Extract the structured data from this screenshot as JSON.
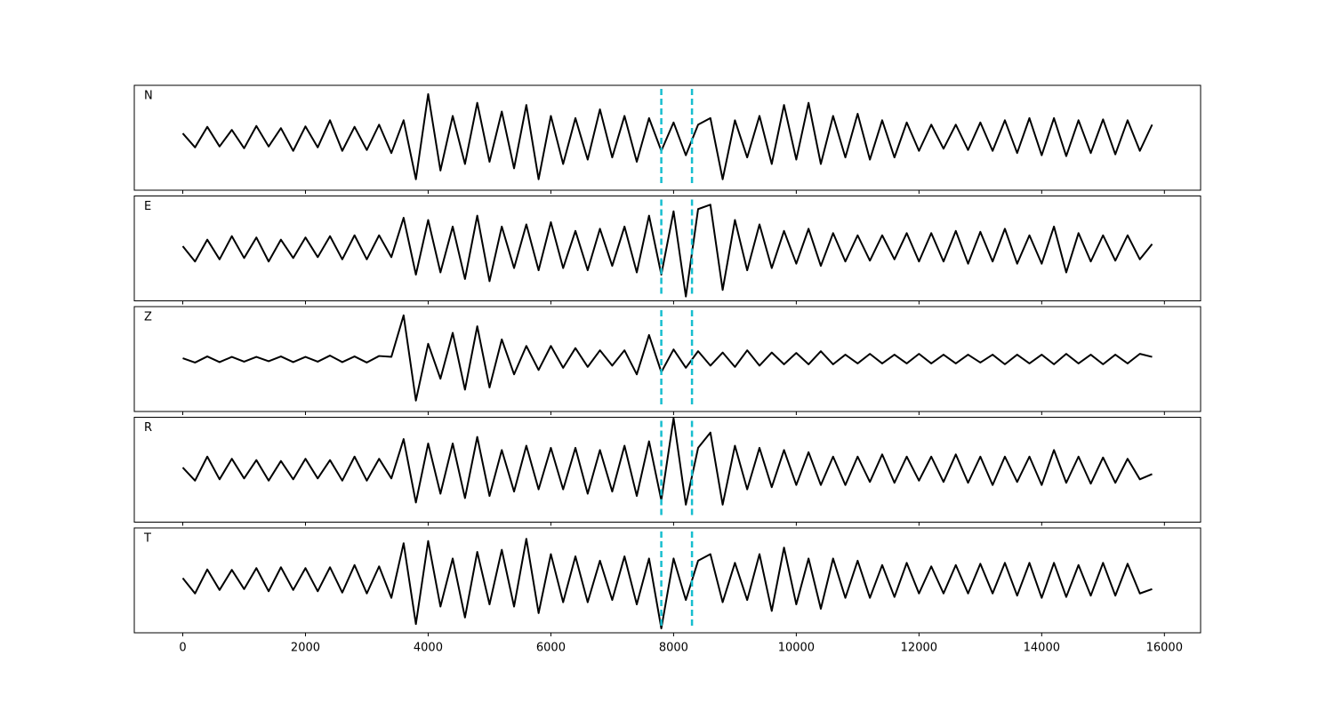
{
  "chart_data": {
    "type": "line",
    "layout": "stacked-panels",
    "x": [
      0,
      200,
      400,
      600,
      800,
      1000,
      1200,
      1400,
      1600,
      1800,
      2000,
      2200,
      2400,
      2600,
      2800,
      3000,
      3200,
      3400,
      3600,
      3800,
      4000,
      4200,
      4400,
      4600,
      4800,
      5000,
      5200,
      5400,
      5600,
      5800,
      6000,
      6200,
      6400,
      6600,
      6800,
      7000,
      7200,
      7400,
      7600,
      7800,
      8000,
      8200,
      8400,
      8600,
      8800,
      9000,
      9200,
      9400,
      9600,
      9800,
      10000,
      10200,
      10400,
      10600,
      10800,
      11000,
      11200,
      11400,
      11600,
      11800,
      12000,
      12200,
      12400,
      12600,
      12800,
      13000,
      13200,
      13400,
      13600,
      13800,
      14000,
      14200,
      14400,
      14600,
      14800,
      15000,
      15200,
      15400,
      15600,
      15800
    ],
    "xlim": [
      -790,
      16590
    ],
    "xticks": [
      0,
      2000,
      4000,
      6000,
      8000,
      10000,
      12000,
      14000,
      16000
    ],
    "ylim": [
      -1.2,
      1.2
    ],
    "series": [
      {
        "name": "N",
        "color": "#000000",
        "values": [
          0.1,
          -0.22,
          0.25,
          -0.2,
          0.18,
          -0.24,
          0.27,
          -0.2,
          0.22,
          -0.3,
          0.26,
          -0.22,
          0.4,
          -0.3,
          0.25,
          -0.28,
          0.3,
          -0.35,
          0.4,
          -0.95,
          1.0,
          -0.75,
          0.5,
          -0.6,
          0.8,
          -0.55,
          0.6,
          -0.7,
          0.75,
          -0.95,
          0.5,
          -0.6,
          0.45,
          -0.5,
          0.65,
          -0.45,
          0.5,
          -0.55,
          0.45,
          -0.3,
          0.35,
          -0.4,
          0.3,
          0.45,
          -0.95,
          0.4,
          -0.45,
          0.5,
          -0.6,
          0.75,
          -0.5,
          0.8,
          -0.6,
          0.5,
          -0.45,
          0.55,
          -0.5,
          0.4,
          -0.45,
          0.35,
          -0.3,
          0.3,
          -0.25,
          0.3,
          -0.28,
          0.35,
          -0.3,
          0.4,
          -0.35,
          0.45,
          -0.4,
          0.45,
          -0.42,
          0.4,
          -0.35,
          0.42,
          -0.38,
          0.4,
          -0.3,
          0.3
        ]
      },
      {
        "name": "E",
        "color": "#000000",
        "values": [
          0.05,
          -0.3,
          0.2,
          -0.25,
          0.28,
          -0.22,
          0.25,
          -0.3,
          0.2,
          -0.22,
          0.25,
          -0.2,
          0.28,
          -0.25,
          0.3,
          -0.25,
          0.3,
          -0.2,
          0.7,
          -0.6,
          0.65,
          -0.55,
          0.5,
          -0.7,
          0.75,
          -0.75,
          0.5,
          -0.45,
          0.55,
          -0.5,
          0.6,
          -0.45,
          0.4,
          -0.5,
          0.45,
          -0.4,
          0.5,
          -0.55,
          0.75,
          -0.6,
          0.85,
          -1.1,
          0.9,
          1.0,
          -0.95,
          0.65,
          -0.5,
          0.55,
          -0.45,
          0.4,
          -0.35,
          0.45,
          -0.4,
          0.35,
          -0.3,
          0.3,
          -0.28,
          0.3,
          -0.25,
          0.35,
          -0.3,
          0.35,
          -0.3,
          0.4,
          -0.35,
          0.38,
          -0.3,
          0.45,
          -0.35,
          0.3,
          -0.35,
          0.5,
          -0.55,
          0.35,
          -0.3,
          0.3,
          -0.28,
          0.3,
          -0.25,
          0.1
        ]
      },
      {
        "name": "Z",
        "color": "#000000",
        "values": [
          0.02,
          -0.08,
          0.06,
          -0.07,
          0.05,
          -0.06,
          0.05,
          -0.05,
          0.06,
          -0.07,
          0.05,
          -0.06,
          0.08,
          -0.07,
          0.06,
          -0.08,
          0.07,
          0.05,
          1.0,
          -0.95,
          0.35,
          -0.45,
          0.6,
          -0.7,
          0.75,
          -0.65,
          0.45,
          -0.35,
          0.3,
          -0.25,
          0.3,
          -0.2,
          0.25,
          -0.18,
          0.2,
          -0.15,
          0.2,
          -0.35,
          0.55,
          -0.3,
          0.22,
          -0.2,
          0.18,
          -0.15,
          0.15,
          -0.18,
          0.2,
          -0.15,
          0.15,
          -0.12,
          0.14,
          -0.12,
          0.18,
          -0.12,
          0.1,
          -0.1,
          0.12,
          -0.1,
          0.1,
          -0.1,
          0.12,
          -0.1,
          0.1,
          -0.1,
          0.1,
          -0.08,
          0.1,
          -0.12,
          0.1,
          -0.1,
          0.1,
          -0.12,
          0.12,
          -0.1,
          0.1,
          -0.12,
          0.1,
          -0.1,
          0.12,
          0.05
        ]
      },
      {
        "name": "R",
        "color": "#000000",
        "values": [
          0.05,
          -0.25,
          0.3,
          -0.22,
          0.25,
          -0.2,
          0.22,
          -0.25,
          0.2,
          -0.22,
          0.25,
          -0.2,
          0.22,
          -0.25,
          0.3,
          -0.25,
          0.25,
          -0.2,
          0.7,
          -0.75,
          0.6,
          -0.55,
          0.6,
          -0.65,
          0.75,
          -0.6,
          0.45,
          -0.5,
          0.55,
          -0.45,
          0.5,
          -0.45,
          0.5,
          -0.55,
          0.45,
          -0.5,
          0.55,
          -0.6,
          0.65,
          -0.7,
          1.18,
          -0.8,
          0.5,
          0.85,
          -0.8,
          0.55,
          -0.45,
          0.5,
          -0.4,
          0.45,
          -0.35,
          0.4,
          -0.35,
          0.3,
          -0.35,
          0.3,
          -0.28,
          0.35,
          -0.3,
          0.3,
          -0.25,
          0.3,
          -0.28,
          0.35,
          -0.3,
          0.3,
          -0.35,
          0.3,
          -0.28,
          0.3,
          -0.35,
          0.45,
          -0.3,
          0.3,
          -0.32,
          0.28,
          -0.3,
          0.25,
          -0.22,
          -0.1
        ]
      },
      {
        "name": "T",
        "color": "#000000",
        "values": [
          0.05,
          -0.3,
          0.25,
          -0.22,
          0.24,
          -0.2,
          0.28,
          -0.25,
          0.3,
          -0.22,
          0.28,
          -0.25,
          0.3,
          -0.28,
          0.35,
          -0.3,
          0.32,
          -0.4,
          0.85,
          -1.0,
          0.9,
          -0.6,
          0.5,
          -0.85,
          0.65,
          -0.55,
          0.7,
          -0.6,
          0.95,
          -0.75,
          0.6,
          -0.5,
          0.55,
          -0.5,
          0.45,
          -0.45,
          0.55,
          -0.55,
          0.5,
          -1.1,
          0.5,
          -0.45,
          0.45,
          0.6,
          -0.5,
          0.4,
          -0.45,
          0.6,
          -0.7,
          0.75,
          -0.55,
          0.5,
          -0.65,
          0.5,
          -0.4,
          0.45,
          -0.4,
          0.35,
          -0.38,
          0.4,
          -0.3,
          0.32,
          -0.3,
          0.35,
          -0.3,
          0.38,
          -0.3,
          0.4,
          -0.35,
          0.4,
          -0.4,
          0.4,
          -0.38,
          0.35,
          -0.35,
          0.4,
          -0.35,
          0.38,
          -0.3,
          -0.2
        ]
      }
    ],
    "vlines": {
      "values": [
        7800,
        8300
      ],
      "color": "#17becf",
      "style": "dashed"
    }
  }
}
